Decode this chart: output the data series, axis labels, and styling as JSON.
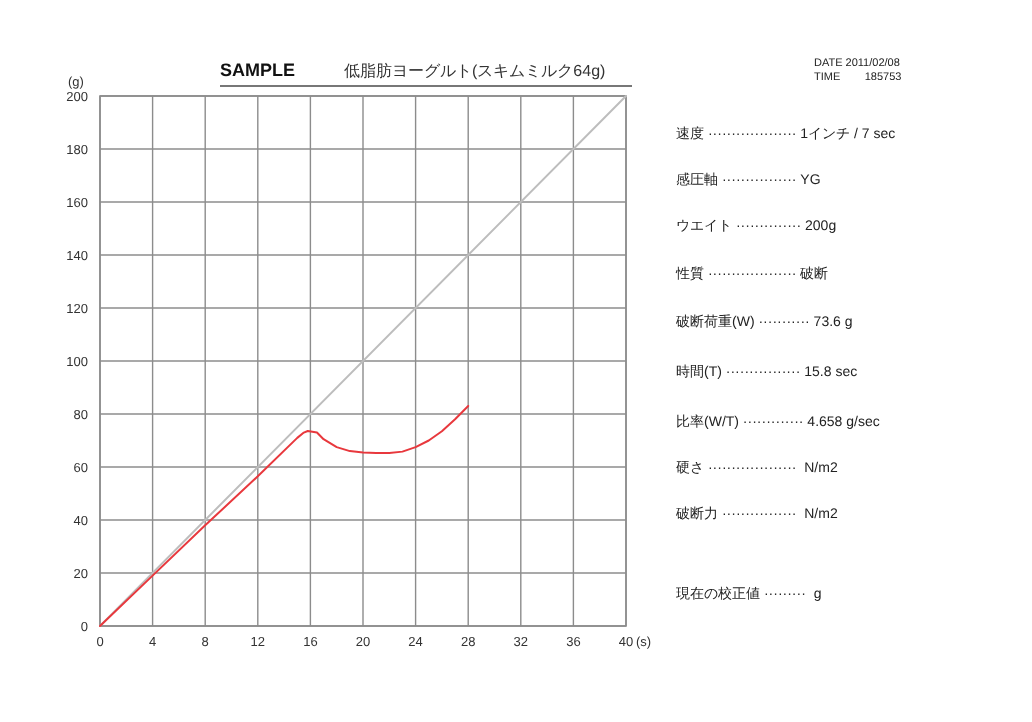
{
  "chart_data": {
    "type": "line",
    "title": "SAMPLE",
    "subtitle": "低脂肪ヨーグルト(スキムミルク64g)",
    "xlabel": "(s)",
    "ylabel": "(g)",
    "xlim": [
      0,
      40
    ],
    "ylim": [
      0,
      200
    ],
    "xticks": [
      0,
      4,
      8,
      12,
      16,
      20,
      24,
      28,
      32,
      36,
      40
    ],
    "yticks": [
      0,
      20,
      40,
      60,
      80,
      100,
      120,
      140,
      160,
      180,
      200
    ],
    "grid": true,
    "marker": "none",
    "line_style": "solid",
    "series": [
      {
        "color": "#bdbdbd",
        "x": [
          0,
          40
        ],
        "values": [
          0,
          200
        ]
      },
      {
        "color": "#e8383d",
        "x": [
          0,
          4,
          8,
          12,
          15,
          15.5,
          15.8,
          16.5,
          17,
          18,
          19,
          20,
          21,
          22,
          23,
          24,
          25,
          26,
          27,
          28
        ],
        "values": [
          0,
          19,
          38,
          56.5,
          71,
          73,
          73.6,
          73,
          70.5,
          67.5,
          66,
          65.5,
          65.3,
          65.3,
          65.8,
          67.5,
          70,
          73.5,
          78,
          83
        ]
      }
    ],
    "annotations": [
      "DATE 2011/02/08",
      "TIME        185753",
      "速度 ··················· 1インチ / 7 sec",
      "感圧軸 ················ YG",
      "ウエイト ·············· 200g",
      "性質 ··················· 破断",
      "破断荷重(W) ··········· 73.6 g",
      "時間(T) ················ 15.8 sec",
      "比率(W/T) ············· 4.658 g/sec",
      "硬さ ···················  N/m2",
      "破断力 ················  N/m2",
      "現在の校正値 ·········  g"
    ]
  }
}
